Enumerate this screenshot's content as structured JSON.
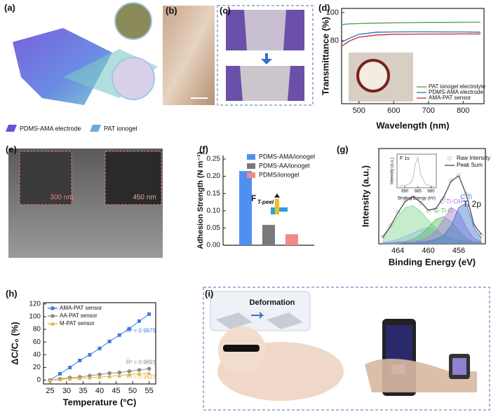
{
  "panel_labels": [
    "(a)",
    "(b)",
    "(c)",
    "(d)",
    "(e)",
    "(f)",
    "(g)",
    "(h)",
    "(i)"
  ],
  "panel_a_legend": [
    "PDMS-AMA electrode",
    "PAT ionogel"
  ],
  "panel_e_scale_bars": [
    "300 nm",
    "450 nm"
  ],
  "panel_i_caption": "Deformation",
  "chart_data": [
    {
      "type": "line",
      "xlabel": "Wavelength (nm)",
      "ylabel": "Transmittance (%)",
      "x": [
        450,
        475,
        500,
        550,
        600,
        650,
        700,
        750,
        800,
        850
      ],
      "xlim": [
        450,
        860
      ],
      "xticks": [
        500,
        600,
        700,
        800
      ],
      "ylim": [
        35,
        103
      ],
      "yticks": [
        80,
        100
      ],
      "legend": "lower right",
      "series": [
        {
          "name": "PAT ionogel electrolyte",
          "color": "#5aa55a",
          "values": [
            91.5,
            92,
            92.2,
            92.5,
            92.7,
            92.8,
            93,
            93,
            93.1,
            93.2
          ]
        },
        {
          "name": "PDMS-AMA electrode",
          "color": "#3a78c8",
          "values": [
            79,
            82,
            84.5,
            86,
            86.2,
            86.3,
            86.3,
            86.2,
            86.2,
            86
          ]
        },
        {
          "name": "AMA-PAT sensor",
          "color": "#c83a3a",
          "values": [
            76,
            80,
            82.5,
            84,
            84.5,
            84.6,
            84.7,
            84.7,
            84.8,
            84.8
          ]
        }
      ]
    },
    {
      "type": "bar",
      "ylabel": "Adhesion Strength (N m⁻¹)",
      "annotation": "F",
      "annotation_sub": "T-peel",
      "categories": [
        null
      ],
      "ylim": [
        0,
        0.26
      ],
      "yticks": [
        {
          "value": 0,
          "label": "0.00"
        },
        {
          "value": 0.05,
          "label": "0.05"
        },
        {
          "value": 0.1,
          "label": "0.10"
        },
        {
          "value": 0.15,
          "label": "0.15"
        },
        {
          "value": 0.2,
          "label": "0.20"
        },
        {
          "value": 0.25,
          "label": "0.25"
        }
      ],
      "legend": "upper right",
      "series": [
        {
          "name": "PDMS-AMA/ionogel",
          "color": "#4f8ff0",
          "values": [
            0.215
          ]
        },
        {
          "name": "PDMS-AA/ionogel",
          "color": "#7a7a7a",
          "values": [
            0.059
          ]
        },
        {
          "name": "PDMS/ionogel",
          "color": "#f08a8a",
          "values": [
            0.032
          ]
        }
      ]
    },
    {
      "type": "line",
      "xlabel": "Binding Energy (eV)",
      "ylabel": "Intensity (a.u.)",
      "annotation": "Ti 2p",
      "x": [
        466,
        465,
        464,
        463,
        462,
        461,
        460,
        459,
        458,
        457,
        456,
        455,
        454,
        453
      ],
      "xlim": [
        466.5,
        452.5
      ],
      "xticks": [
        464,
        460,
        456
      ],
      "ylim": [
        0,
        1.05
      ],
      "legend": "upper right",
      "series": [
        {
          "color": "#7fd68f",
          "fill": true,
          "values": [
            0.06,
            0.17,
            0.3,
            0.4,
            0.42,
            0.36,
            0.26,
            0.17,
            0.1,
            0.06,
            0.04,
            0.03,
            0.02,
            0.01
          ]
        },
        {
          "color": "#8fb8e8",
          "fill": true,
          "values": [
            0.02,
            0.03,
            0.05,
            0.08,
            0.12,
            0.16,
            0.18,
            0.14,
            0.09,
            0.05,
            0.03,
            0.02,
            0.02,
            0.01
          ]
        },
        {
          "name": "C-Ti-O",
          "color": "#5cbf5c",
          "fill": true,
          "values": [
            0.01,
            0.01,
            0.02,
            0.03,
            0.05,
            0.1,
            0.18,
            0.27,
            0.3,
            0.25,
            0.14,
            0.06,
            0.02,
            0.01
          ]
        },
        {
          "name": "C-Ti-OH",
          "color": "#b07fe0",
          "fill": true,
          "values": [
            0.01,
            0.01,
            0.01,
            0.02,
            0.03,
            0.04,
            0.07,
            0.14,
            0.27,
            0.4,
            0.35,
            0.18,
            0.06,
            0.02
          ]
        },
        {
          "name": "C-Ti",
          "color": "#3f78d0",
          "fill": true,
          "values": [
            0,
            0,
            0,
            0.01,
            0.01,
            0.02,
            0.03,
            0.05,
            0.09,
            0.2,
            0.4,
            0.45,
            0.18,
            0.06
          ]
        },
        {
          "name": "Raw Intensity",
          "color": "#b0b0b0",
          "marker": "circle",
          "values": [
            0.08,
            0.2,
            0.35,
            0.48,
            0.52,
            0.45,
            0.36,
            0.38,
            0.5,
            0.7,
            0.76,
            0.55,
            0.2,
            0.1
          ]
        },
        {
          "name": "Peak Sum",
          "color": "#555555",
          "values": [
            0.07,
            0.19,
            0.34,
            0.47,
            0.52,
            0.46,
            0.37,
            0.39,
            0.51,
            0.69,
            0.75,
            0.54,
            0.21,
            0.1
          ]
        }
      ]
    },
    {
      "type": "line",
      "title": "F 1s",
      "xlabel": "Binding Energy (eV)",
      "ylabel": "Intensity (a.u.)",
      "x": [
        692,
        690,
        688,
        687,
        686,
        685,
        684,
        682,
        680,
        679
      ],
      "xlim": [
        693,
        678
      ],
      "xticks": [
        690,
        685,
        680
      ],
      "ylim": [
        0,
        1
      ],
      "series": [
        {
          "color": "#aaaaaa",
          "values": [
            0.05,
            0.07,
            0.12,
            0.25,
            0.7,
            0.9,
            0.4,
            0.1,
            0.05,
            0.04
          ]
        }
      ]
    },
    {
      "type": "scatter",
      "xlabel": "Temperature (°C)",
      "ylabel": "ΔC/C₀ (%)",
      "x": [
        25,
        28,
        31,
        34,
        37,
        40,
        43,
        46,
        49,
        52,
        55
      ],
      "xlim": [
        23,
        57
      ],
      "xticks": [
        25,
        30,
        35,
        40,
        45,
        50,
        55
      ],
      "ylim": [
        -6,
        122
      ],
      "yticks": [
        0,
        20,
        40,
        60,
        80,
        100,
        120
      ],
      "legend": "upper left",
      "series": [
        {
          "name": "AMA-PAT sensor",
          "color": "#3b7dd8",
          "marker": "square",
          "fit_label": "R² = 0.9979",
          "values": [
            0,
            10,
            20,
            31,
            40,
            50,
            61,
            71,
            81,
            93,
            104
          ]
        },
        {
          "name": "AA-PAT sensor",
          "color": "#8a8a8a",
          "marker": "circle",
          "fit_label": "R² = 0.9891",
          "values": [
            0,
            2,
            4,
            5,
            7,
            9,
            11,
            12,
            14,
            16,
            18
          ]
        },
        {
          "name": "M-PAT sensor",
          "color": "#e0b83a",
          "marker": "triangle",
          "fit_label": "R² = 0.9823",
          "values": [
            0,
            1,
            2,
            3,
            4,
            5,
            6,
            7,
            9,
            10,
            11
          ]
        }
      ]
    }
  ]
}
